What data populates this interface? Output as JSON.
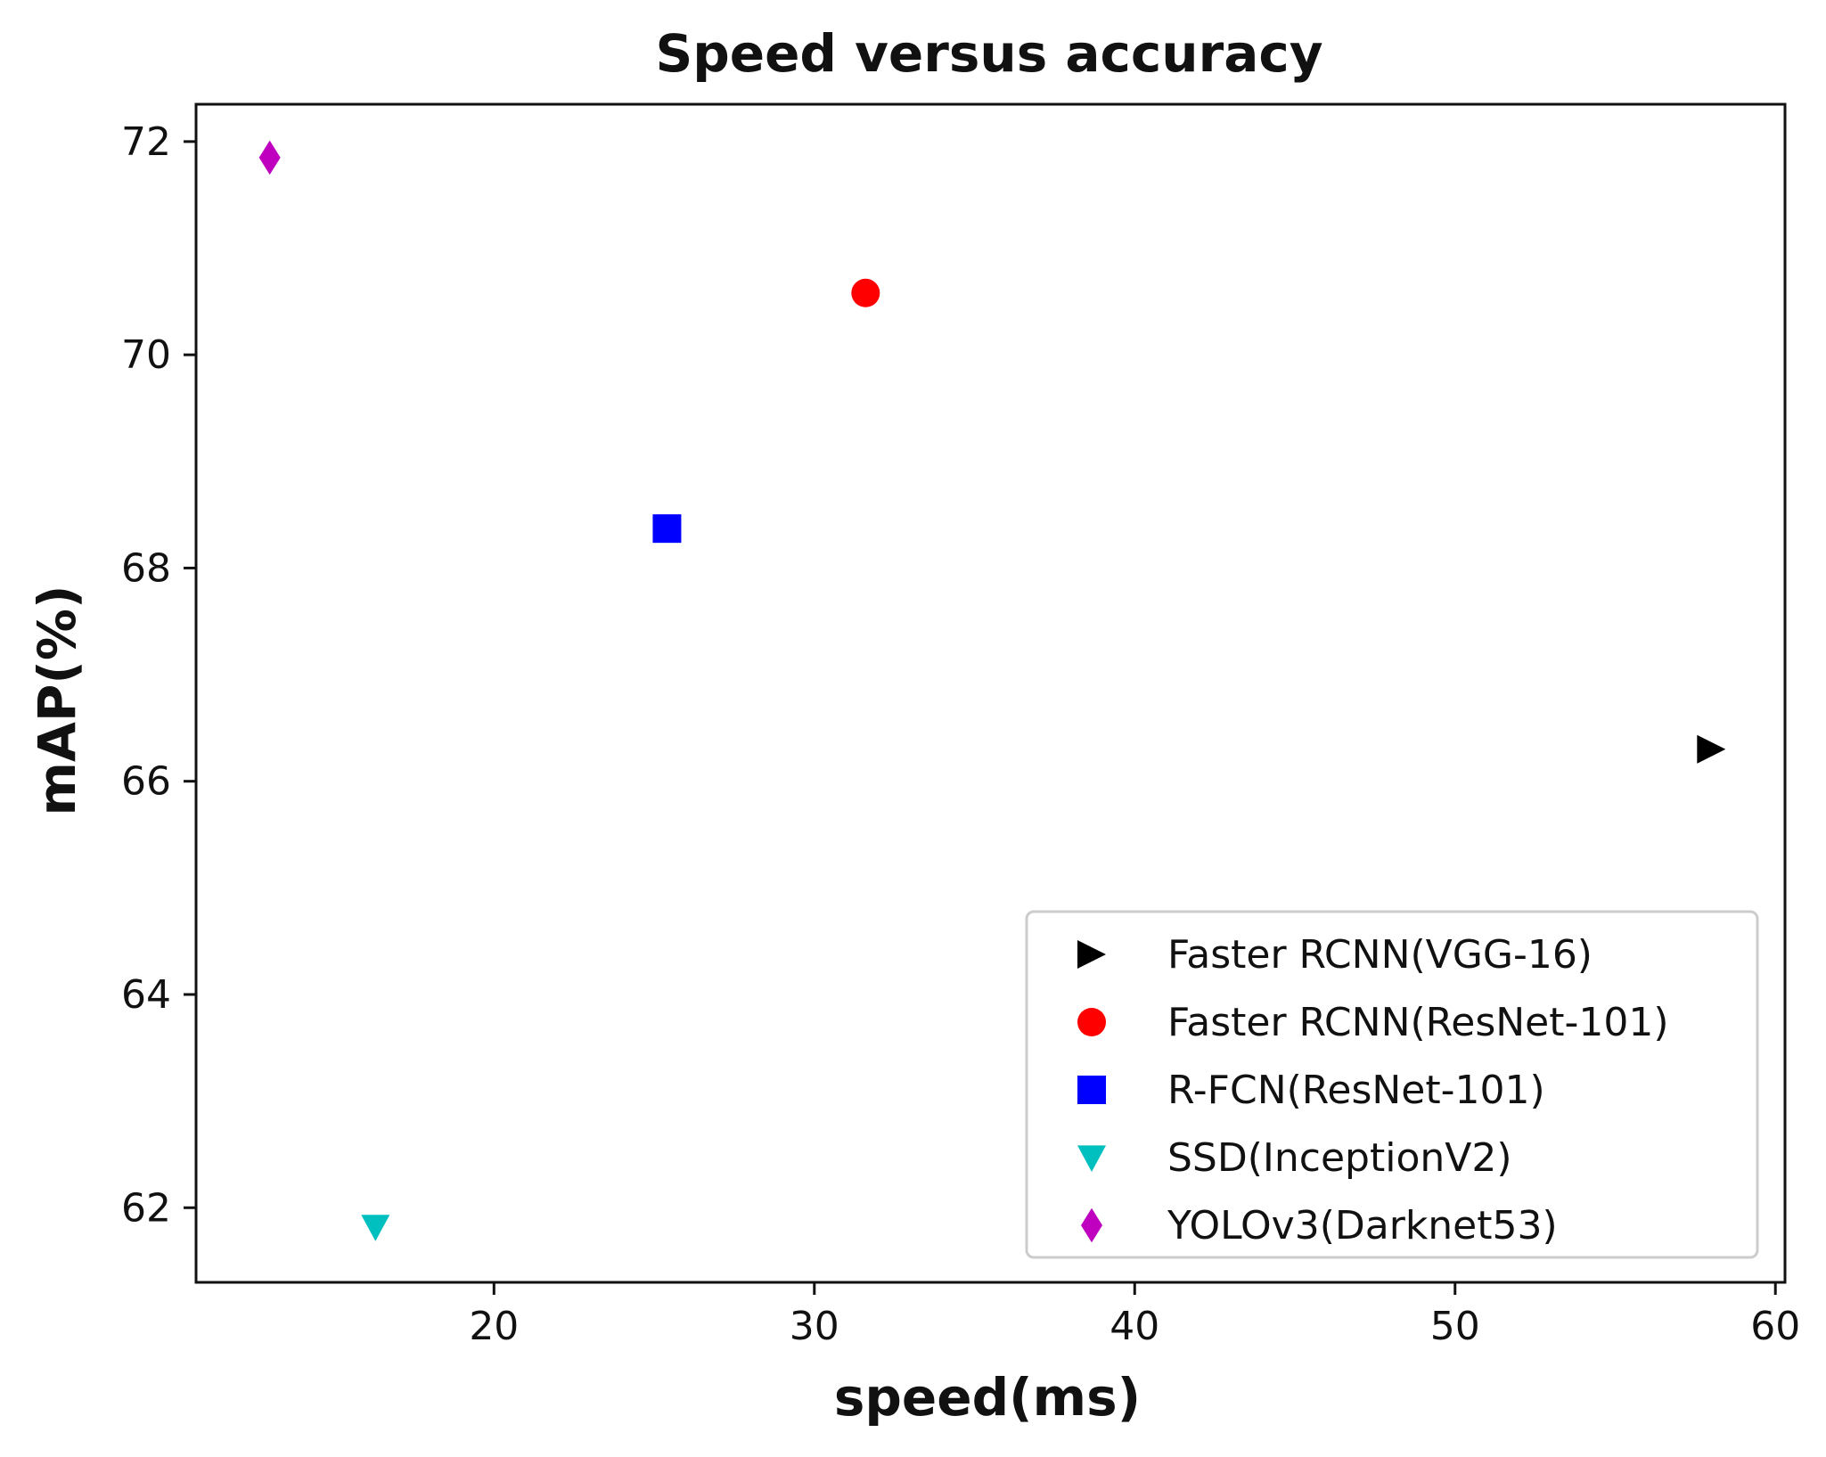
{
  "chart_data": {
    "type": "scatter",
    "title": "Speed versus accuracy",
    "xlabel": "speed(ms)",
    "ylabel": "mAP(%)",
    "xlim": [
      10.7,
      60.3
    ],
    "ylim": [
      61.3,
      72.35
    ],
    "xticks": [
      20,
      30,
      40,
      50,
      60
    ],
    "yticks": [
      62,
      64,
      66,
      68,
      70,
      72
    ],
    "grid": false,
    "legend_position": "lower-right",
    "series": [
      {
        "name": "Faster RCNN(VGG-16)",
        "marker": "triangle-right",
        "color": "#000000",
        "x": [
          58
        ],
        "y": [
          66.3
        ]
      },
      {
        "name": "Faster RCNN(ResNet-101)",
        "marker": "circle",
        "color": "#ff0000",
        "x": [
          31.6
        ],
        "y": [
          70.58
        ]
      },
      {
        "name": "R-FCN(ResNet-101)",
        "marker": "square",
        "color": "#0000ff",
        "x": [
          25.4
        ],
        "y": [
          68.37
        ]
      },
      {
        "name": "SSD(InceptionV2)",
        "marker": "triangle-down",
        "color": "#00bfbf",
        "x": [
          16.3
        ],
        "y": [
          61.82
        ]
      },
      {
        "name": "YOLOv3(Darknet53)",
        "marker": "diamond",
        "color": "#bf00bf",
        "x": [
          13.0
        ],
        "y": [
          71.85
        ]
      }
    ]
  }
}
